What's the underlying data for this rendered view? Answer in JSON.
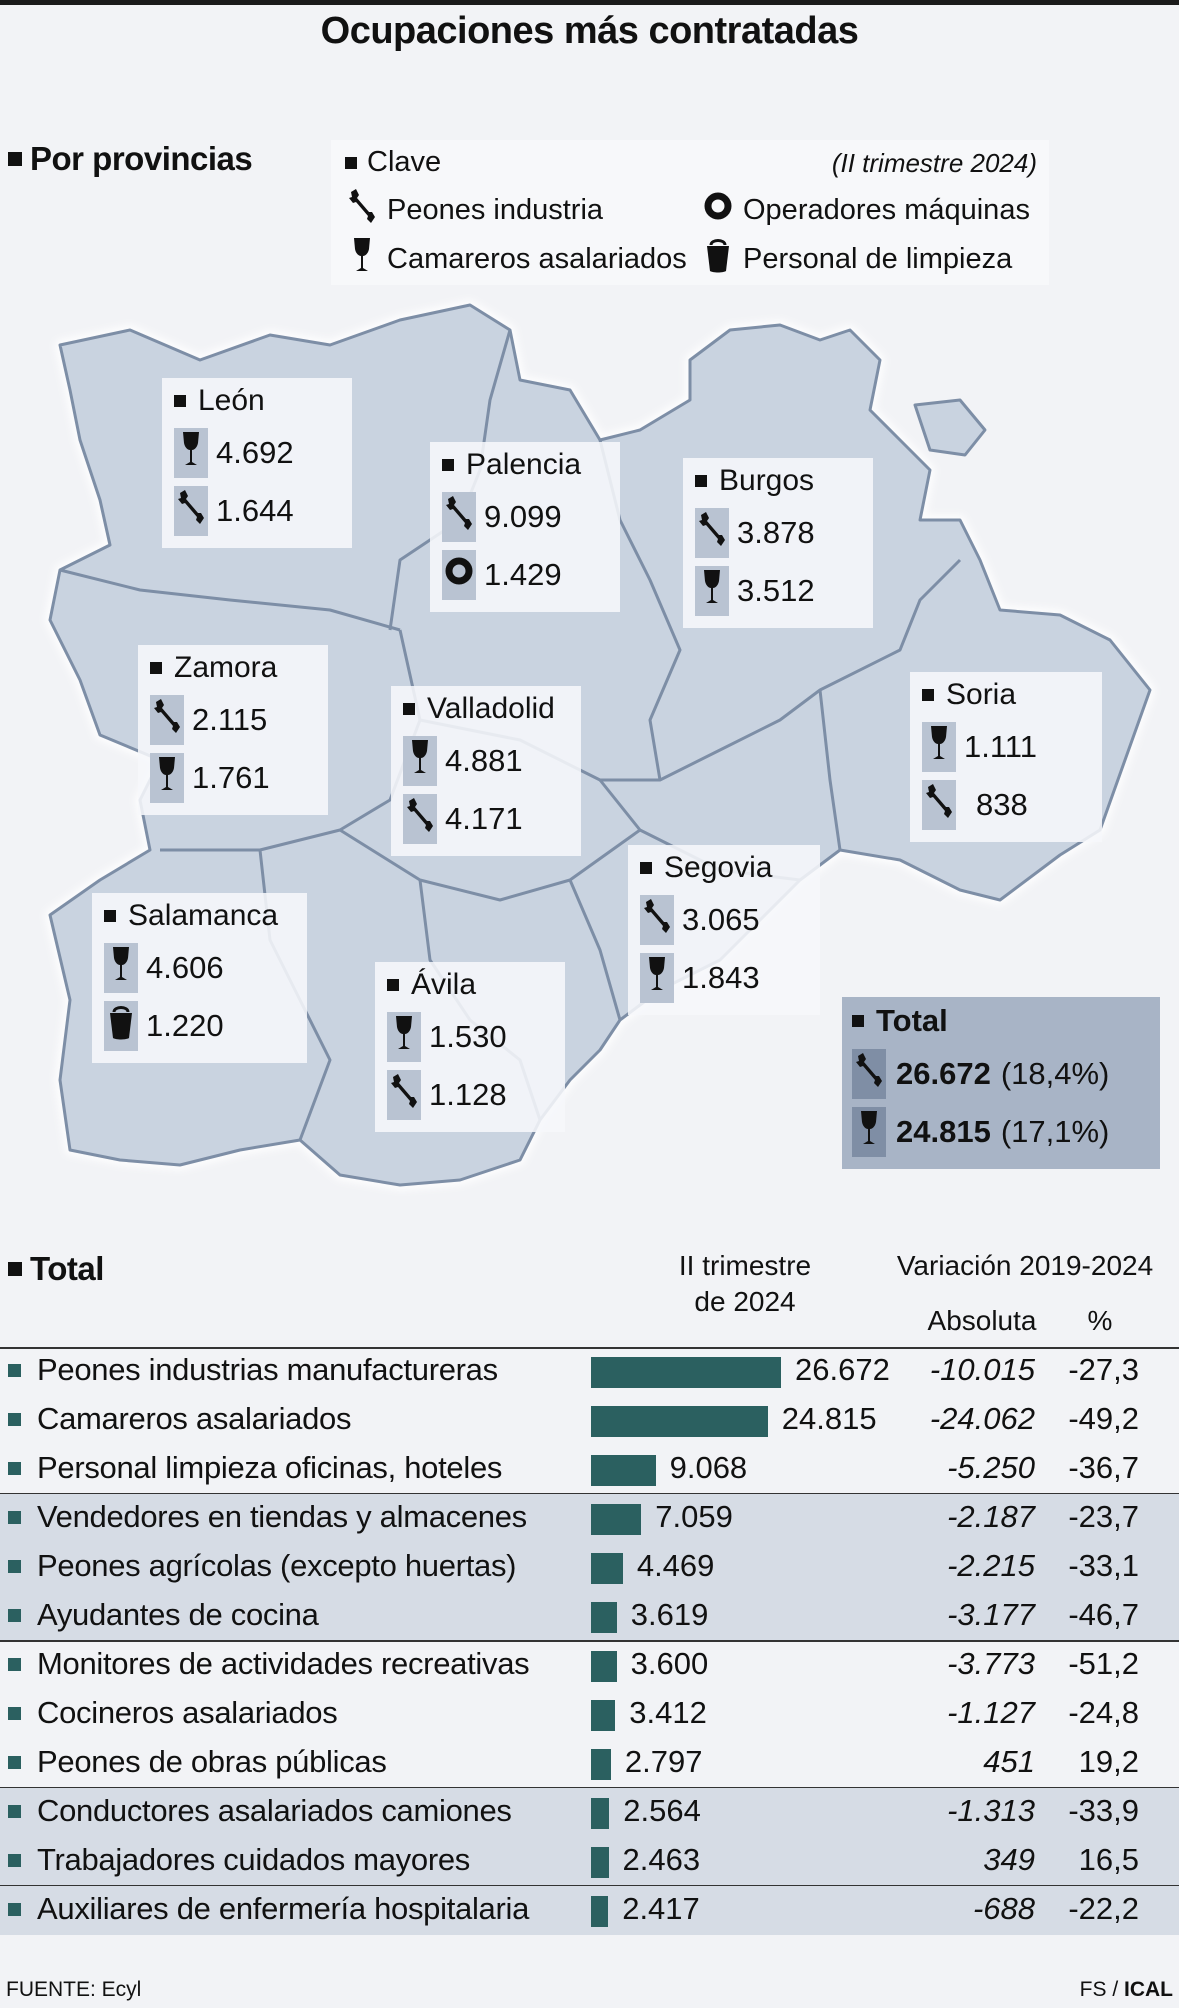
{
  "title": "Ocupaciones más contratadas",
  "provinces_heading": "Por provincias",
  "legend": {
    "title": "Clave",
    "period": "(II trimestre 2024)",
    "items": [
      {
        "icon": "wrench-icon",
        "label": "Peones industria"
      },
      {
        "icon": "ring-icon",
        "label": "Operadores máquinas"
      },
      {
        "icon": "wine-glass-icon",
        "label": "Camareros asalariados"
      },
      {
        "icon": "bucket-icon",
        "label": "Personal de limpieza"
      }
    ]
  },
  "provinces": [
    {
      "name": "León",
      "rows": [
        {
          "icon": "wine-glass-icon",
          "value": "4.692"
        },
        {
          "icon": "wrench-icon",
          "value": "1.644"
        }
      ]
    },
    {
      "name": "Palencia",
      "rows": [
        {
          "icon": "wrench-icon",
          "value": "9.099"
        },
        {
          "icon": "ring-icon",
          "value": "1.429"
        }
      ]
    },
    {
      "name": "Burgos",
      "rows": [
        {
          "icon": "wrench-icon",
          "value": "3.878"
        },
        {
          "icon": "wine-glass-icon",
          "value": "3.512"
        }
      ]
    },
    {
      "name": "Zamora",
      "rows": [
        {
          "icon": "wrench-icon",
          "value": "2.115"
        },
        {
          "icon": "wine-glass-icon",
          "value": "1.761"
        }
      ]
    },
    {
      "name": "Valladolid",
      "rows": [
        {
          "icon": "wine-glass-icon",
          "value": "4.881"
        },
        {
          "icon": "wrench-icon",
          "value": "4.171"
        }
      ]
    },
    {
      "name": "Soria",
      "rows": [
        {
          "icon": "wine-glass-icon",
          "value": "1.111"
        },
        {
          "icon": "wrench-icon",
          "value": "838"
        }
      ]
    },
    {
      "name": "Segovia",
      "rows": [
        {
          "icon": "wrench-icon",
          "value": "3.065"
        },
        {
          "icon": "wine-glass-icon",
          "value": "1.843"
        }
      ]
    },
    {
      "name": "Salamanca",
      "rows": [
        {
          "icon": "wine-glass-icon",
          "value": "4.606"
        },
        {
          "icon": "bucket-icon",
          "value": "1.220"
        }
      ]
    },
    {
      "name": "Ávila",
      "rows": [
        {
          "icon": "wine-glass-icon",
          "value": "1.530"
        },
        {
          "icon": "wrench-icon",
          "value": "1.128"
        }
      ]
    }
  ],
  "total_box": {
    "title": "Total",
    "rows": [
      {
        "icon": "wrench-icon",
        "value": "26.672",
        "pct": "(18,4%)"
      },
      {
        "icon": "wine-glass-icon",
        "value": "24.815",
        "pct": "(17,1%)"
      }
    ]
  },
  "table_heading": "Total",
  "table_headers": {
    "period_line1": "II trimestre",
    "period_line2": "de 2024",
    "variation": "Variación 2019-2024",
    "absolute": "Absoluta",
    "percent": "%"
  },
  "chart_data": {
    "type": "bar",
    "categories": [
      "Peones industrias manufactureras",
      "Camareros asalariados",
      "Personal limpieza oficinas, hoteles",
      "Vendedores en tiendas y almacenes",
      "Peones agrícolas (excepto huertas)",
      "Ayudantes de cocina",
      "Monitores de actividades recreativas",
      "Cocineros asalariados",
      "Peones de obras públicas",
      "Conductores asalariados camiones",
      "Trabajadores cuidados mayores",
      "Auxiliares de enfermería hospitalaria"
    ],
    "values": [
      26672,
      24815,
      9068,
      7059,
      4469,
      3619,
      3600,
      3412,
      2797,
      2564,
      2463,
      2417
    ],
    "value_labels": [
      "26.672",
      "24.815",
      "9.068",
      "7.059",
      "4.469",
      "3.619",
      "3.600",
      "3.412",
      "2.797",
      "2.564",
      "2.463",
      "2.417"
    ],
    "absolute_change": [
      "-10.015",
      "-24.062",
      "-5.250",
      "-2.187",
      "-2.215",
      "-3.177",
      "-3.773",
      "-1.127",
      "451",
      "-1.313",
      "349",
      "-688"
    ],
    "percent_change": [
      "-27,3",
      "-49,2",
      "-36,7",
      "-23,7",
      "-33,1",
      "-46,7",
      "-51,2",
      "-24,8",
      "19,2",
      "-33,9",
      "16,5",
      "-22,2"
    ],
    "bar_color": "#2b6060"
  },
  "footer": {
    "source": "FUENTE: Ecyl",
    "credit_prefix": "FS / ",
    "credit_bold": "ICAL"
  }
}
